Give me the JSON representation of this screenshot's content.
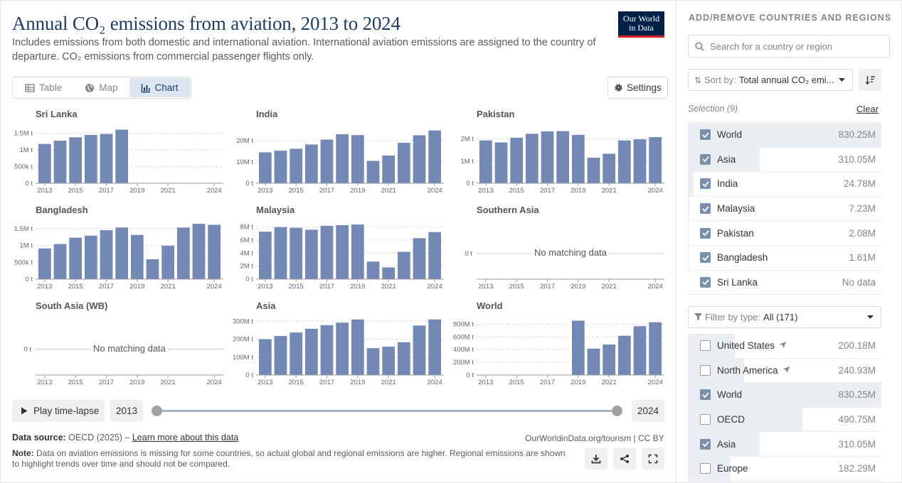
{
  "header": {
    "title": "Annual CO₂ emissions from aviation, 2013 to 2024",
    "subtitle": "Includes emissions from both domestic and international aviation. International aviation emissions are assigned to the country of departure. CO₂ emissions from commercial passenger flights only.",
    "logo_line1": "Our World",
    "logo_line2": "in Data"
  },
  "tabs": [
    {
      "label": "Table",
      "icon": "table-icon"
    },
    {
      "label": "Map",
      "icon": "globe-icon"
    },
    {
      "label": "Chart",
      "icon": "chart-icon",
      "active": true
    }
  ],
  "settings_label": "Settings",
  "no_matching_label": "No matching data",
  "colors": {
    "bar": "#7388b4",
    "title": "#1d3d63"
  },
  "chart_data": [
    {
      "type": "bar",
      "title": "Sri Lanka",
      "categories": [
        2013,
        2014,
        2015,
        2016,
        2017,
        2018
      ],
      "values": [
        1.18,
        1.28,
        1.38,
        1.45,
        1.48,
        1.61
      ],
      "unit": "M t",
      "ylim": [
        0,
        1.6
      ],
      "yticks": [
        {
          "v": 0,
          "l": "0 t"
        },
        {
          "v": 0.5,
          "l": "500k t"
        },
        {
          "v": 1,
          "l": "1M t"
        },
        {
          "v": 1.5,
          "l": "1.5M t"
        }
      ]
    },
    {
      "type": "bar",
      "title": "India",
      "categories": [
        2013,
        2014,
        2015,
        2016,
        2017,
        2018,
        2019,
        2020,
        2021,
        2022,
        2023,
        2024
      ],
      "values": [
        14.5,
        15.3,
        16.2,
        18.2,
        20.5,
        23.0,
        22.6,
        10.5,
        13.0,
        19.0,
        22.5,
        24.78
      ],
      "unit": "M t",
      "ylim": [
        0,
        25
      ],
      "yticks": [
        {
          "v": 0,
          "l": "0 t"
        },
        {
          "v": 10,
          "l": "10M t"
        },
        {
          "v": 20,
          "l": "20M t"
        }
      ]
    },
    {
      "type": "bar",
      "title": "Pakistan",
      "categories": [
        2013,
        2014,
        2015,
        2016,
        2017,
        2018,
        2019,
        2020,
        2021,
        2022,
        2023,
        2024
      ],
      "values": [
        1.93,
        1.84,
        2.05,
        2.23,
        2.34,
        2.35,
        2.18,
        1.15,
        1.33,
        1.93,
        1.98,
        2.08
      ],
      "unit": "M t",
      "ylim": [
        0,
        2.4
      ],
      "yticks": [
        {
          "v": 0,
          "l": "0 t"
        },
        {
          "v": 1,
          "l": "1M t"
        },
        {
          "v": 2,
          "l": "2M t"
        }
      ]
    },
    {
      "type": "bar",
      "title": "Bangladesh",
      "categories": [
        2013,
        2014,
        2015,
        2016,
        2017,
        2018,
        2019,
        2020,
        2021,
        2022,
        2023,
        2024
      ],
      "values": [
        0.91,
        1.04,
        1.23,
        1.29,
        1.45,
        1.53,
        1.31,
        0.59,
        0.99,
        1.53,
        1.64,
        1.61
      ],
      "unit": "M t",
      "ylim": [
        0,
        1.6
      ],
      "yticks": [
        {
          "v": 0,
          "l": "0 t"
        },
        {
          "v": 0.5,
          "l": "500k t"
        },
        {
          "v": 1,
          "l": "1M t"
        },
        {
          "v": 1.5,
          "l": "1.5M t"
        }
      ]
    },
    {
      "type": "bar",
      "title": "Malaysia",
      "categories": [
        2013,
        2014,
        2015,
        2016,
        2017,
        2018,
        2019,
        2020,
        2021,
        2022,
        2023,
        2024
      ],
      "values": [
        7.3,
        8.0,
        7.9,
        7.6,
        8.2,
        8.3,
        8.4,
        2.7,
        1.8,
        4.2,
        6.3,
        7.23
      ],
      "unit": "M t",
      "ylim": [
        0,
        8.3
      ],
      "yticks": [
        {
          "v": 0,
          "l": "0 t"
        },
        {
          "v": 2,
          "l": "2M t"
        },
        {
          "v": 4,
          "l": "4M t"
        },
        {
          "v": 6,
          "l": "6M t"
        },
        {
          "v": 8,
          "l": "8M t"
        }
      ]
    },
    {
      "type": "bar",
      "title": "Southern Asia",
      "categories": [],
      "values": [],
      "empty": true,
      "yticks": [
        {
          "v": 0,
          "l": "0 t"
        }
      ]
    },
    {
      "type": "bar",
      "title": "South Asia (WB)",
      "categories": [],
      "values": [],
      "empty": true,
      "yticks": [
        {
          "v": 0,
          "l": "0 t"
        }
      ]
    },
    {
      "type": "bar",
      "title": "Asia",
      "categories": [
        2013,
        2014,
        2015,
        2016,
        2017,
        2018,
        2019,
        2020,
        2021,
        2022,
        2023,
        2024
      ],
      "values": [
        200,
        218,
        237,
        258,
        278,
        292,
        310,
        150,
        158,
        183,
        276,
        310.05
      ],
      "unit": "M t",
      "ylim": [
        0,
        305
      ],
      "yticks": [
        {
          "v": 0,
          "l": "0 t"
        },
        {
          "v": 100,
          "l": "100M t"
        },
        {
          "v": 200,
          "l": "200M t"
        },
        {
          "v": 300,
          "l": "300M t"
        }
      ]
    },
    {
      "type": "bar",
      "title": "World",
      "categories": [
        2019,
        2020,
        2021,
        2022,
        2023,
        2024
      ],
      "values": [
        855,
        415,
        480,
        618,
        768,
        830.25
      ],
      "unit": "M t",
      "ylim": [
        0,
        860
      ],
      "yticks": [
        {
          "v": 0,
          "l": "0 t"
        },
        {
          "v": 200,
          "l": "200M t"
        },
        {
          "v": 400,
          "l": "400M t"
        },
        {
          "v": 600,
          "l": "600M t"
        },
        {
          "v": 800,
          "l": "800M t"
        }
      ]
    }
  ],
  "xticks": [
    "2013",
    "2015",
    "2017",
    "2019",
    "2021",
    "2024"
  ],
  "timeline": {
    "play_label": "Play time-lapse",
    "start": "2013",
    "end": "2024"
  },
  "footer": {
    "source_label": "Data source:",
    "source_value": "OECD (2025) –",
    "source_link": "Learn more about this data",
    "owid_link": "OurWorldinData.org/tourism | CC BY",
    "note_label": "Note:",
    "note_text": "Data on aviation emissions is missing for some countries, so actual global and regional emissions are higher. Regional emissions are shown to highlight trends over time and should not be compared."
  },
  "sidebar": {
    "heading": "ADD/REMOVE COUNTRIES AND REGIONS",
    "search_placeholder": "Search for a country or region",
    "sort_label": "Sort by:",
    "sort_value": "Total annual CO₂ emi...",
    "selection_label": "Selection (9)",
    "clear_label": "Clear",
    "selected": [
      {
        "name": "World",
        "value": "830.25M",
        "share": 1.0
      },
      {
        "name": "Asia",
        "value": "310.05M",
        "share": 0.373
      },
      {
        "name": "India",
        "value": "24.78M",
        "share": 0.03
      },
      {
        "name": "Malaysia",
        "value": "7.23M",
        "share": 0.009
      },
      {
        "name": "Pakistan",
        "value": "2.08M",
        "share": 0.003
      },
      {
        "name": "Bangladesh",
        "value": "1.61M",
        "share": 0.002
      },
      {
        "name": "Sri Lanka",
        "value": "No data",
        "share": 0
      }
    ],
    "filter_label": "Filter by type:",
    "filter_value": "All (171)",
    "all_items": [
      {
        "name": "United States",
        "value": "200.18M",
        "share": 0.241,
        "checked": false,
        "arrow": true
      },
      {
        "name": "North America",
        "value": "240.93M",
        "share": 0.29,
        "checked": false,
        "arrow": true
      },
      {
        "name": "World",
        "value": "830.25M",
        "share": 1.0,
        "checked": true
      },
      {
        "name": "OECD",
        "value": "490.75M",
        "share": 0.591,
        "checked": false
      },
      {
        "name": "Asia",
        "value": "310.05M",
        "share": 0.373,
        "checked": true
      },
      {
        "name": "Europe",
        "value": "182.29M",
        "share": 0.22,
        "checked": false
      }
    ]
  }
}
